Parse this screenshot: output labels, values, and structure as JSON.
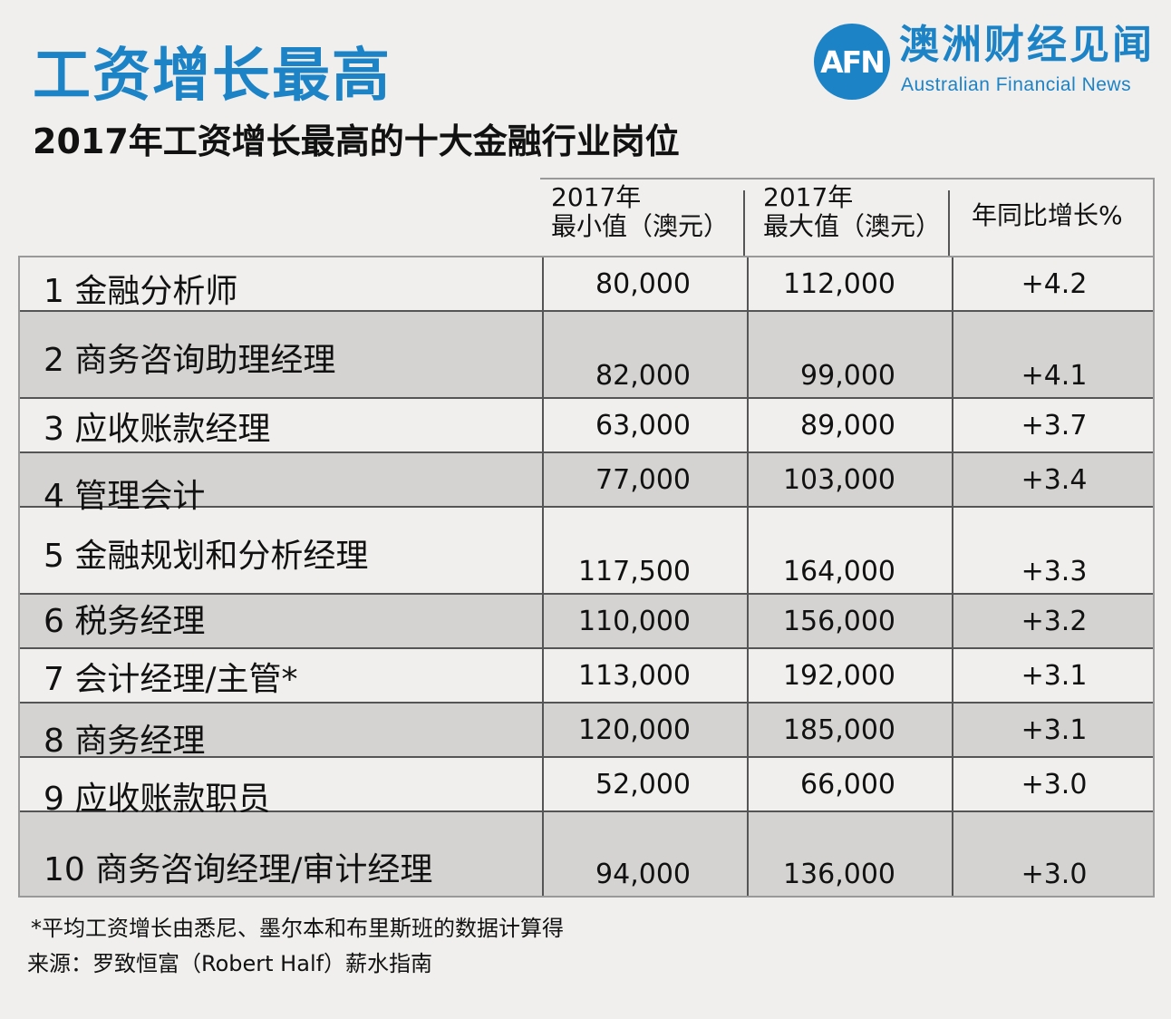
{
  "title": "工资增长最高",
  "subtitle": "2017年工资增长最高的十大金融行业岗位",
  "brand": {
    "logo_text": "AFN",
    "name_cn": "澳洲财经见闻",
    "name_en": "Australian Financial News",
    "color": "#1c83c6"
  },
  "footnote": "*平均工资增长由悉尼、墨尔本和布里斯班的数据计算得",
  "source": "来源：罗致恒富（Robert Half）薪水指南",
  "chart_data": {
    "type": "table",
    "columns": [
      {
        "line1": "2017年",
        "line2": "最小值（澳元）"
      },
      {
        "line1": "2017年",
        "line2": "最大值（澳元）"
      },
      {
        "line1": "年同比增长%",
        "line2": ""
      }
    ],
    "rows": [
      {
        "name": "1 金融分析师",
        "min": "80,000",
        "max": "112,000",
        "growth": "+4.2"
      },
      {
        "name": "2 商务咨询助理经理",
        "min": "82,000",
        "max": "99,000",
        "growth": "+4.1"
      },
      {
        "name": "3 应收账款经理",
        "min": "63,000",
        "max": "89,000",
        "growth": "+3.7"
      },
      {
        "name": "4 管理会计",
        "min": "77,000",
        "max": "103,000",
        "growth": "+3.4"
      },
      {
        "name": "5 金融规划和分析经理",
        "min": "117,500",
        "max": "164,000",
        "growth": "+3.3"
      },
      {
        "name": "6 税务经理",
        "min": "110,000",
        "max": "156,000",
        "growth": "+3.2"
      },
      {
        "name": "7 会计经理/主管*",
        "min": "113,000",
        "max": "192,000",
        "growth": "+3.1"
      },
      {
        "name": "8 商务经理",
        "min": "120,000",
        "max": "185,000",
        "growth": "+3.1"
      },
      {
        "name": "9 应收账款职员",
        "min": "52,000",
        "max": "66,000",
        "growth": "+3.0"
      },
      {
        "name": "10 商务咨询经理/审计经理",
        "min": "94,000",
        "max": "136,000",
        "growth": "+3.0"
      }
    ]
  }
}
